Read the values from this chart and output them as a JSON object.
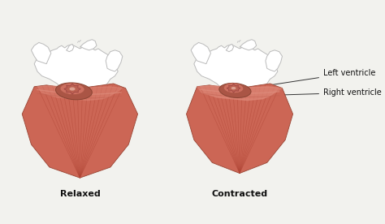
{
  "bg_color": "#f2f2ee",
  "heart_outline_color": "#bbbbbb",
  "heart_fill_color": "#ffffff",
  "ventricle_base_color": "#cc6655",
  "ventricle_mid_color": "#c45f50",
  "ventricle_light_color": "#de8878",
  "ventricle_dark_color": "#aa4535",
  "muscle_line_color": "#b04535",
  "inner_chamber_color": "#c07060",
  "inner_light_color": "#dda090",
  "valve_color": "#bb6555",
  "label_left_ventricle": "Left ventricle",
  "label_right_ventricle": "Right ventricle",
  "label_relaxed": "Relaxed",
  "label_contracted": "Contracted",
  "annotation_fontsize": 7,
  "label_fontsize": 8
}
